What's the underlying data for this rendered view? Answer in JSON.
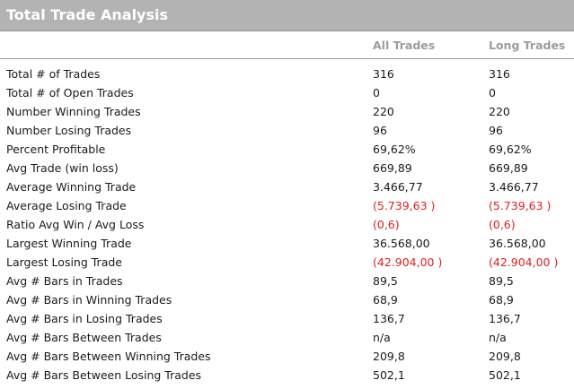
{
  "title": "Total Trade Analysis",
  "columns": [
    "All Trades",
    "Long Trades"
  ],
  "colors": {
    "header_bg": "#b3b3b3",
    "negative": "#e02020"
  },
  "rows": [
    {
      "label": "Total # of Trades",
      "all": "316",
      "long": "316",
      "negative": false
    },
    {
      "label": "Total # of Open Trades",
      "all": "0",
      "long": "0",
      "negative": false
    },
    {
      "label": "Number Winning Trades",
      "all": "220",
      "long": "220",
      "negative": false
    },
    {
      "label": "Number Losing Trades",
      "all": "96",
      "long": "96",
      "negative": false
    },
    {
      "label": "Percent Profitable",
      "all": "69,62%",
      "long": "69,62%",
      "negative": false
    },
    {
      "label": "Avg Trade (win  loss)",
      "all": "669,89",
      "long": "669,89",
      "negative": false
    },
    {
      "label": "Average Winning Trade",
      "all": "3.466,77",
      "long": "3.466,77",
      "negative": false
    },
    {
      "label": "Average Losing Trade",
      "all": "(5.739,63 )",
      "long": "(5.739,63 )",
      "negative": true
    },
    {
      "label": "Ratio Avg Win / Avg Loss",
      "all": "(0,6)",
      "long": "(0,6)",
      "negative": true
    },
    {
      "label": "Largest Winning Trade",
      "all": "36.568,00",
      "long": "36.568,00",
      "negative": false
    },
    {
      "label": "Largest Losing Trade",
      "all": "(42.904,00 )",
      "long": "(42.904,00 )",
      "negative": true
    },
    {
      "label": "Avg # Bars in Trades",
      "all": "89,5",
      "long": "89,5",
      "negative": false
    },
    {
      "label": "Avg # Bars in Winning Trades",
      "all": "68,9",
      "long": "68,9",
      "negative": false
    },
    {
      "label": "Avg # Bars in Losing Trades",
      "all": "136,7",
      "long": "136,7",
      "negative": false
    },
    {
      "label": "Avg # Bars Between Trades",
      "all": "n/a",
      "long": "n/a",
      "negative": false
    },
    {
      "label": "Avg # Bars Between Winning Trades",
      "all": "209,8",
      "long": "209,8",
      "negative": false
    },
    {
      "label": "Avg # Bars Between Losing Trades",
      "all": "502,1",
      "long": "502,1",
      "negative": false
    }
  ]
}
